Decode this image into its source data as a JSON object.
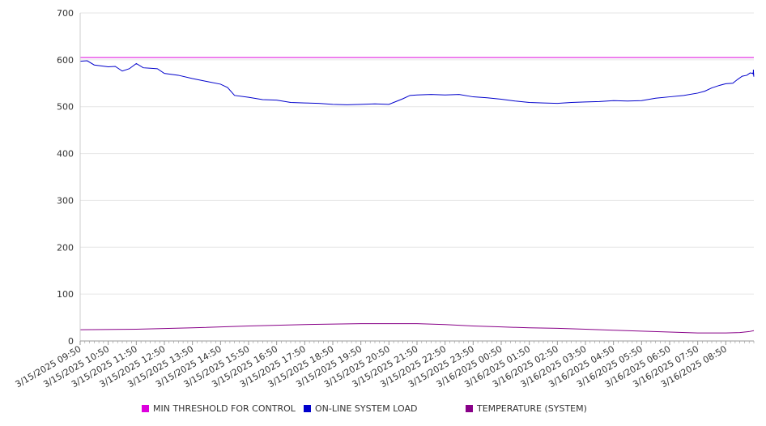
{
  "chart_data": {
    "type": "line",
    "title": "",
    "xlabel": "",
    "ylabel": "",
    "ylim": [
      0,
      700
    ],
    "yticks": [
      0,
      100,
      200,
      300,
      400,
      500,
      600,
      700
    ],
    "grid": true,
    "legend_position": "bottom",
    "x_tick_labels": [
      "3/15/2025 09:50",
      "3/15/2025 10:50",
      "3/15/2025 11:50",
      "3/15/2025 12:50",
      "3/15/2025 13:50",
      "3/15/2025 14:50",
      "3/15/2025 15:50",
      "3/15/2025 16:50",
      "3/15/2025 17:50",
      "3/15/2025 18:50",
      "3/15/2025 19:50",
      "3/15/2025 20:50",
      "3/15/2025 21:50",
      "3/15/2025 22:50",
      "3/15/2025 23:50",
      "3/16/2025 00:50",
      "3/16/2025 01:50",
      "3/16/2025 02:50",
      "3/16/2025 03:50",
      "3/16/2025 04:50",
      "3/16/2025 05:50",
      "3/16/2025 06:50",
      "3/16/2025 07:50",
      "3/16/2025 08:50"
    ],
    "x_range": [
      "3/15/2025 09:50",
      "3/16/2025 09:50"
    ],
    "series": [
      {
        "name": "MIN THRESHOLD FOR CONTROL",
        "color": "#dd00dd",
        "points": [
          [
            "3/15/2025 09:50",
            605
          ],
          [
            "3/16/2025 09:50",
            605
          ]
        ]
      },
      {
        "name": "ON-LINE SYSTEM LOAD",
        "color": "#0000cc",
        "points": [
          [
            "3/15/2025 09:50",
            597
          ],
          [
            "3/15/2025 10:05",
            598
          ],
          [
            "3/15/2025 10:20",
            589
          ],
          [
            "3/15/2025 10:35",
            587
          ],
          [
            "3/15/2025 10:50",
            585
          ],
          [
            "3/15/2025 11:05",
            586
          ],
          [
            "3/15/2025 11:20",
            576
          ],
          [
            "3/15/2025 11:35",
            581
          ],
          [
            "3/15/2025 11:50",
            592
          ],
          [
            "3/15/2025 12:05",
            583
          ],
          [
            "3/15/2025 12:20",
            582
          ],
          [
            "3/15/2025 12:35",
            581
          ],
          [
            "3/15/2025 12:50",
            571
          ],
          [
            "3/15/2025 13:20",
            567
          ],
          [
            "3/15/2025 13:50",
            560
          ],
          [
            "3/15/2025 14:20",
            554
          ],
          [
            "3/15/2025 14:50",
            548
          ],
          [
            "3/15/2025 15:05",
            541
          ],
          [
            "3/15/2025 15:20",
            524
          ],
          [
            "3/15/2025 15:50",
            520
          ],
          [
            "3/15/2025 16:20",
            515
          ],
          [
            "3/15/2025 16:50",
            514
          ],
          [
            "3/15/2025 17:20",
            509
          ],
          [
            "3/15/2025 17:50",
            508
          ],
          [
            "3/15/2025 18:20",
            507
          ],
          [
            "3/15/2025 18:50",
            505
          ],
          [
            "3/15/2025 19:20",
            504
          ],
          [
            "3/15/2025 19:50",
            505
          ],
          [
            "3/15/2025 20:20",
            506
          ],
          [
            "3/15/2025 20:50",
            505
          ],
          [
            "3/15/2025 21:05",
            511
          ],
          [
            "3/15/2025 21:20",
            517
          ],
          [
            "3/15/2025 21:35",
            524
          ],
          [
            "3/15/2025 21:50",
            525
          ],
          [
            "3/15/2025 22:20",
            526
          ],
          [
            "3/15/2025 22:50",
            525
          ],
          [
            "3/15/2025 23:20",
            526
          ],
          [
            "3/15/2025 23:50",
            521
          ],
          [
            "3/16/2025 00:20",
            519
          ],
          [
            "3/16/2025 00:50",
            516
          ],
          [
            "3/16/2025 01:20",
            512
          ],
          [
            "3/16/2025 01:50",
            509
          ],
          [
            "3/16/2025 02:20",
            508
          ],
          [
            "3/16/2025 02:50",
            507
          ],
          [
            "3/16/2025 03:20",
            509
          ],
          [
            "3/16/2025 03:50",
            510
          ],
          [
            "3/16/2025 04:20",
            511
          ],
          [
            "3/16/2025 04:50",
            513
          ],
          [
            "3/16/2025 05:20",
            512
          ],
          [
            "3/16/2025 05:50",
            513
          ],
          [
            "3/16/2025 06:20",
            518
          ],
          [
            "3/16/2025 06:50",
            521
          ],
          [
            "3/16/2025 07:20",
            524
          ],
          [
            "3/16/2025 07:50",
            529
          ],
          [
            "3/16/2025 08:05",
            533
          ],
          [
            "3/16/2025 08:20",
            540
          ],
          [
            "3/16/2025 08:35",
            545
          ],
          [
            "3/16/2025 08:50",
            549
          ],
          [
            "3/16/2025 09:05",
            550
          ],
          [
            "3/16/2025 09:15",
            558
          ],
          [
            "3/16/2025 09:25",
            565
          ],
          [
            "3/16/2025 09:35",
            567
          ],
          [
            "3/16/2025 09:42",
            572
          ],
          [
            "3/16/2025 09:48",
            571
          ],
          [
            "3/16/2025 09:50",
            573
          ],
          [
            "3/16/2025 09:50",
            572
          ],
          [
            "3/16/2025 09:50",
            568
          ],
          [
            "3/16/2025 09:50",
            579
          ],
          [
            "3/16/2025 09:50",
            573
          ],
          [
            "3/16/2025 09:50",
            570
          ],
          [
            "3/16/2025 09:50",
            565
          ],
          [
            "3/16/2025 09:50",
            564
          ]
        ]
      },
      {
        "name": "TEMPERATURE (SYSTEM)",
        "color": "#880088",
        "points": [
          [
            "3/15/2025 09:50",
            24
          ],
          [
            "3/15/2025 11:50",
            25
          ],
          [
            "3/15/2025 13:50",
            28
          ],
          [
            "3/15/2025 15:50",
            32
          ],
          [
            "3/15/2025 17:50",
            35
          ],
          [
            "3/15/2025 19:50",
            37
          ],
          [
            "3/15/2025 21:50",
            37
          ],
          [
            "3/15/2025 22:50",
            35
          ],
          [
            "3/15/2025 23:50",
            32
          ],
          [
            "3/16/2025 00:50",
            30
          ],
          [
            "3/16/2025 01:50",
            28
          ],
          [
            "3/16/2025 02:50",
            27
          ],
          [
            "3/16/2025 03:50",
            25
          ],
          [
            "3/16/2025 04:50",
            23
          ],
          [
            "3/16/2025 05:50",
            21
          ],
          [
            "3/16/2025 06:50",
            19
          ],
          [
            "3/16/2025 07:50",
            17
          ],
          [
            "3/16/2025 08:50",
            17
          ],
          [
            "3/16/2025 09:20",
            18
          ],
          [
            "3/16/2025 09:40",
            20
          ],
          [
            "3/16/2025 09:50",
            22
          ]
        ]
      }
    ]
  }
}
